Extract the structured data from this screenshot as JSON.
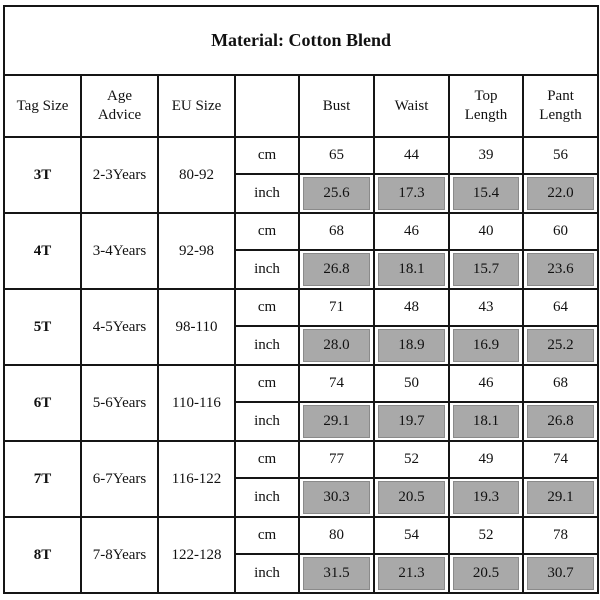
{
  "title": "Material: Cotton Blend",
  "headers": [
    "Tag Size",
    "Age Advice",
    "EU Size",
    "",
    "Bust",
    "Waist",
    "Top Length",
    "Pant Length"
  ],
  "unit_labels": {
    "cm": "cm",
    "inch": "inch"
  },
  "highlight_color": "#a9a9a9",
  "rows": [
    {
      "tag": "3T",
      "age": "2-3Years",
      "eu": "80-92",
      "cm": [
        "65",
        "44",
        "39",
        "56"
      ],
      "inch": [
        "25.6",
        "17.3",
        "15.4",
        "22.0"
      ]
    },
    {
      "tag": "4T",
      "age": "3-4Years",
      "eu": "92-98",
      "cm": [
        "68",
        "46",
        "40",
        "60"
      ],
      "inch": [
        "26.8",
        "18.1",
        "15.7",
        "23.6"
      ]
    },
    {
      "tag": "5T",
      "age": "4-5Years",
      "eu": "98-110",
      "cm": [
        "71",
        "48",
        "43",
        "64"
      ],
      "inch": [
        "28.0",
        "18.9",
        "16.9",
        "25.2"
      ]
    },
    {
      "tag": "6T",
      "age": "5-6Years",
      "eu": "110-116",
      "cm": [
        "74",
        "50",
        "46",
        "68"
      ],
      "inch": [
        "29.1",
        "19.7",
        "18.1",
        "26.8"
      ]
    },
    {
      "tag": "7T",
      "age": "6-7Years",
      "eu": "116-122",
      "cm": [
        "77",
        "52",
        "49",
        "74"
      ],
      "inch": [
        "30.3",
        "20.5",
        "19.3",
        "29.1"
      ]
    },
    {
      "tag": "8T",
      "age": "7-8Years",
      "eu": "122-128",
      "cm": [
        "80",
        "54",
        "52",
        "78"
      ],
      "inch": [
        "31.5",
        "21.3",
        "20.5",
        "30.7"
      ]
    }
  ]
}
